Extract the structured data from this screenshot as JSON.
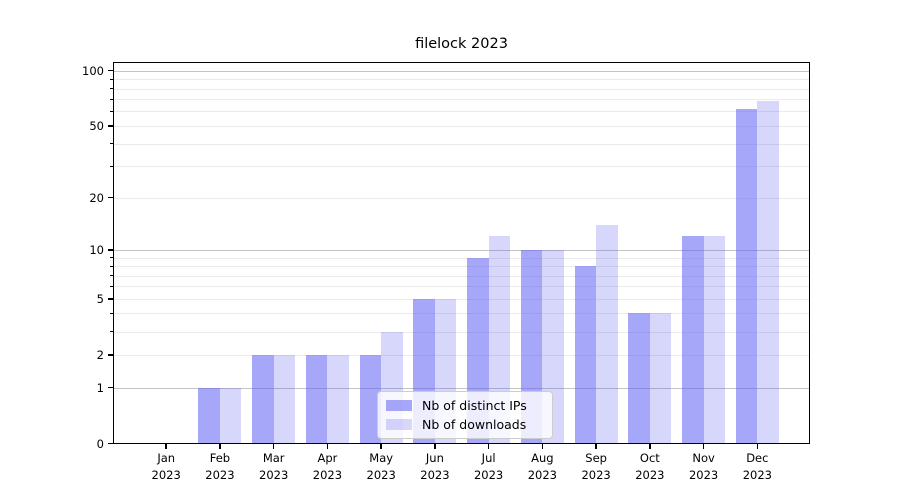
{
  "chart_data": {
    "type": "bar",
    "title": "filelock 2023",
    "categories": [
      "Jan 2023",
      "Feb 2023",
      "Mar 2023",
      "Apr 2023",
      "May 2023",
      "Jun 2023",
      "Jul 2023",
      "Aug 2023",
      "Sep 2023",
      "Oct 2023",
      "Nov 2023",
      "Dec 2023"
    ],
    "x_tick_months": [
      "Jan",
      "Feb",
      "Mar",
      "Apr",
      "May",
      "Jun",
      "Jul",
      "Aug",
      "Sep",
      "Oct",
      "Nov",
      "Dec"
    ],
    "x_tick_year": "2023",
    "series": [
      {
        "name": "Nb of distinct IPs",
        "color": "rgba(100,100,245,0.57)",
        "values": [
          0,
          1,
          2,
          2,
          2,
          5,
          9,
          10,
          8,
          4,
          12,
          62
        ]
      },
      {
        "name": "Nb of downloads",
        "color": "rgba(100,100,245,0.26)",
        "values": [
          0,
          1,
          2,
          2,
          3,
          5,
          12,
          10,
          14,
          4,
          12,
          68
        ]
      }
    ],
    "yscale": "log1p",
    "ylim": [
      0,
      111
    ],
    "ytick_labels": [
      "0",
      "1",
      "2",
      "5",
      "10",
      "20",
      "50",
      "100"
    ],
    "yticks_labeled": [
      0,
      1,
      2,
      5,
      10,
      20,
      50,
      100
    ],
    "grid_major": [
      1,
      10,
      100
    ],
    "grid_minor": [
      2,
      3,
      4,
      5,
      6,
      7,
      8,
      9,
      20,
      30,
      40,
      50,
      60,
      70,
      80,
      90
    ],
    "yticks_minor": [
      3,
      4,
      6,
      7,
      8,
      9,
      30,
      40,
      60,
      70,
      80,
      90
    ],
    "grid": true,
    "legend_position": "lower center"
  },
  "colors": {
    "background": "#ffffff",
    "axis": "#000000",
    "grid_major": "#c3c3c3",
    "grid_minor": "#eaeaea",
    "bar_base": "#6464f5",
    "legend_border": "#cccccc"
  }
}
